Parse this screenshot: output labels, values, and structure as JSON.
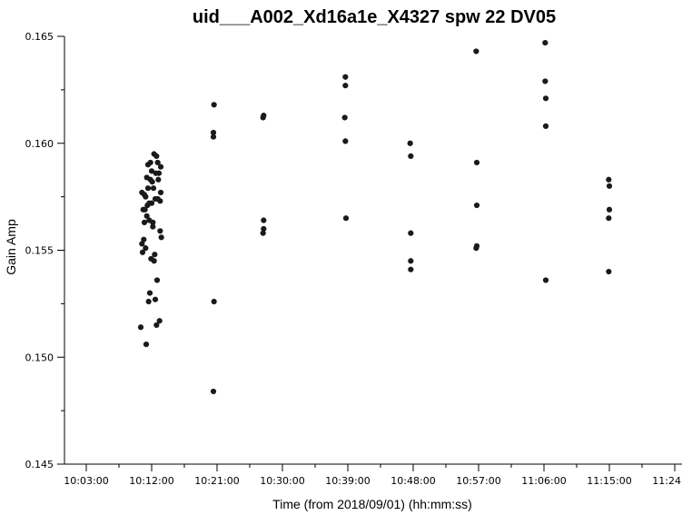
{
  "chart_data": {
    "type": "scatter",
    "title": "uid___A002_Xd16a1e_X4327 spw 22 DV05",
    "xlabel": "Time (from 2018/09/01) (hh:mm:ss)",
    "ylabel": "Gain Amp",
    "xlim": [
      "10:00:00",
      "11:25:00"
    ],
    "ylim": [
      0.145,
      0.165
    ],
    "x_ticks": [
      "10:03:00",
      "10:12:00",
      "10:21:00",
      "10:30:00",
      "10:39:00",
      "10:48:00",
      "10:57:00",
      "11:06:00",
      "11:15:00",
      "11:24:00"
    ],
    "y_ticks": [
      "0.145",
      "0.150",
      "0.155",
      "0.160",
      "0.165"
    ],
    "grid": false,
    "series": [
      {
        "points": [
          {
            "x": "10:10:30",
            "y": 0.1514
          },
          {
            "x": "10:10:40",
            "y": 0.1553
          },
          {
            "x": "10:10:40",
            "y": 0.1577
          },
          {
            "x": "10:10:45",
            "y": 0.1549
          },
          {
            "x": "10:10:50",
            "y": 0.1569
          },
          {
            "x": "10:10:55",
            "y": 0.1555
          },
          {
            "x": "10:11:00",
            "y": 0.1563
          },
          {
            "x": "10:11:00",
            "y": 0.1576
          },
          {
            "x": "10:11:05",
            "y": 0.1569
          },
          {
            "x": "10:11:10",
            "y": 0.1551
          },
          {
            "x": "10:11:10",
            "y": 0.1575
          },
          {
            "x": "10:11:15",
            "y": 0.1506
          },
          {
            "x": "10:11:20",
            "y": 0.1584
          },
          {
            "x": "10:11:20",
            "y": 0.1566
          },
          {
            "x": "10:11:25",
            "y": 0.1571
          },
          {
            "x": "10:11:30",
            "y": 0.159
          },
          {
            "x": "10:11:30",
            "y": 0.1579
          },
          {
            "x": "10:11:35",
            "y": 0.1526
          },
          {
            "x": "10:11:40",
            "y": 0.1564
          },
          {
            "x": "10:11:40",
            "y": 0.1572
          },
          {
            "x": "10:11:45",
            "y": 0.153
          },
          {
            "x": "10:11:50",
            "y": 0.1591
          },
          {
            "x": "10:11:50",
            "y": 0.1583
          },
          {
            "x": "10:11:55",
            "y": 0.1546
          },
          {
            "x": "10:12:00",
            "y": 0.1572
          },
          {
            "x": "10:12:00",
            "y": 0.1587
          },
          {
            "x": "10:12:05",
            "y": 0.1582
          },
          {
            "x": "10:12:10",
            "y": 0.1561
          },
          {
            "x": "10:12:10",
            "y": 0.1563
          },
          {
            "x": "10:12:15",
            "y": 0.1579
          },
          {
            "x": "10:12:20",
            "y": 0.1595
          },
          {
            "x": "10:12:20",
            "y": 0.1545
          },
          {
            "x": "10:12:25",
            "y": 0.1548
          },
          {
            "x": "10:12:30",
            "y": 0.1527
          },
          {
            "x": "10:12:30",
            "y": 0.1574
          },
          {
            "x": "10:12:35",
            "y": 0.1586
          },
          {
            "x": "10:12:40",
            "y": 0.1594
          },
          {
            "x": "10:12:40",
            "y": 0.1515
          },
          {
            "x": "10:12:45",
            "y": 0.1536
          },
          {
            "x": "10:12:50",
            "y": 0.1591
          },
          {
            "x": "10:12:50",
            "y": 0.1574
          },
          {
            "x": "10:12:55",
            "y": 0.1583
          },
          {
            "x": "10:13:00",
            "y": 0.1586
          },
          {
            "x": "10:13:05",
            "y": 0.1517
          },
          {
            "x": "10:13:10",
            "y": 0.1559
          },
          {
            "x": "10:13:10",
            "y": 0.1573
          },
          {
            "x": "10:13:15",
            "y": 0.1577
          },
          {
            "x": "10:13:15",
            "y": 0.1589
          },
          {
            "x": "10:13:20",
            "y": 0.1556
          },
          {
            "x": "10:20:30",
            "y": 0.1605
          },
          {
            "x": "10:20:30",
            "y": 0.1603
          },
          {
            "x": "10:20:35",
            "y": 0.1618
          },
          {
            "x": "10:20:35",
            "y": 0.1526
          },
          {
            "x": "10:20:30",
            "y": 0.1484
          },
          {
            "x": "10:27:20",
            "y": 0.1612
          },
          {
            "x": "10:27:25",
            "y": 0.1613
          },
          {
            "x": "10:27:25",
            "y": 0.1564
          },
          {
            "x": "10:27:20",
            "y": 0.1558
          },
          {
            "x": "10:27:25",
            "y": 0.156
          },
          {
            "x": "10:38:40",
            "y": 0.1631
          },
          {
            "x": "10:38:40",
            "y": 0.1627
          },
          {
            "x": "10:38:35",
            "y": 0.1612
          },
          {
            "x": "10:38:40",
            "y": 0.1601
          },
          {
            "x": "10:38:45",
            "y": 0.1565
          },
          {
            "x": "10:47:35",
            "y": 0.16
          },
          {
            "x": "10:47:40",
            "y": 0.1594
          },
          {
            "x": "10:47:40",
            "y": 0.1558
          },
          {
            "x": "10:47:40",
            "y": 0.1545
          },
          {
            "x": "10:47:40",
            "y": 0.1541
          },
          {
            "x": "10:56:40",
            "y": 0.1643
          },
          {
            "x": "10:56:45",
            "y": 0.1591
          },
          {
            "x": "10:56:45",
            "y": 0.1571
          },
          {
            "x": "10:56:45",
            "y": 0.1552
          },
          {
            "x": "10:56:40",
            "y": 0.1551
          },
          {
            "x": "11:06:10",
            "y": 0.1647
          },
          {
            "x": "11:06:10",
            "y": 0.1629
          },
          {
            "x": "11:06:15",
            "y": 0.1621
          },
          {
            "x": "11:06:15",
            "y": 0.1608
          },
          {
            "x": "11:06:15",
            "y": 0.1536
          },
          {
            "x": "11:14:55",
            "y": 0.1583
          },
          {
            "x": "11:15:00",
            "y": 0.158
          },
          {
            "x": "11:15:00",
            "y": 0.1569
          },
          {
            "x": "11:14:55",
            "y": 0.1565
          },
          {
            "x": "11:14:55",
            "y": 0.154
          }
        ]
      }
    ],
    "marker_color": "#1a1a1a"
  }
}
